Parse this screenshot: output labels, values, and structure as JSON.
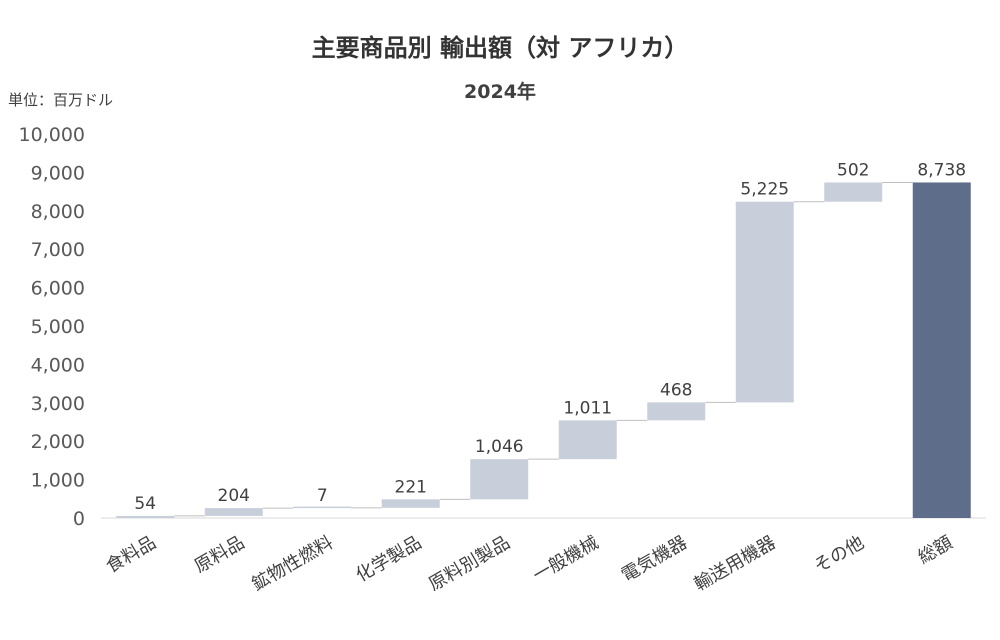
{
  "chart_data": {
    "type": "bar",
    "subtype": "waterfall",
    "title": "主要商品別 輸出額（対 アフリカ）",
    "subtitle": "2024年",
    "unit_label": "単位：百万ドル",
    "xlabel": "",
    "ylabel": "",
    "ylim": [
      0,
      10000
    ],
    "yticks": [
      0,
      1000,
      2000,
      3000,
      4000,
      5000,
      6000,
      7000,
      8000,
      9000,
      10000
    ],
    "ytick_labels": [
      "0",
      "1,000",
      "2,000",
      "3,000",
      "4,000",
      "5,000",
      "6,000",
      "7,000",
      "8,000",
      "9,000",
      "10,000"
    ],
    "categories": [
      "食料品",
      "原料品",
      "鉱物性燃料",
      "化学製品",
      "原料別製品",
      "一般機械",
      "電気機器",
      "輸送用機器",
      "その他",
      "総額"
    ],
    "values": [
      54,
      204,
      7,
      221,
      1046,
      1011,
      468,
      5225,
      502,
      8738
    ],
    "value_labels": [
      "54",
      "204",
      "7",
      "221",
      "1,046",
      "1,011",
      "468",
      "5,225",
      "502",
      "8,738"
    ],
    "is_total": [
      false,
      false,
      false,
      false,
      false,
      false,
      false,
      false,
      false,
      true
    ],
    "grid": false,
    "legend": "none",
    "colors": {
      "increment": "#c8cfdb",
      "total": "#5e6e8a",
      "connector": "#bfbfbf",
      "axis": "#d9d9d9"
    }
  }
}
